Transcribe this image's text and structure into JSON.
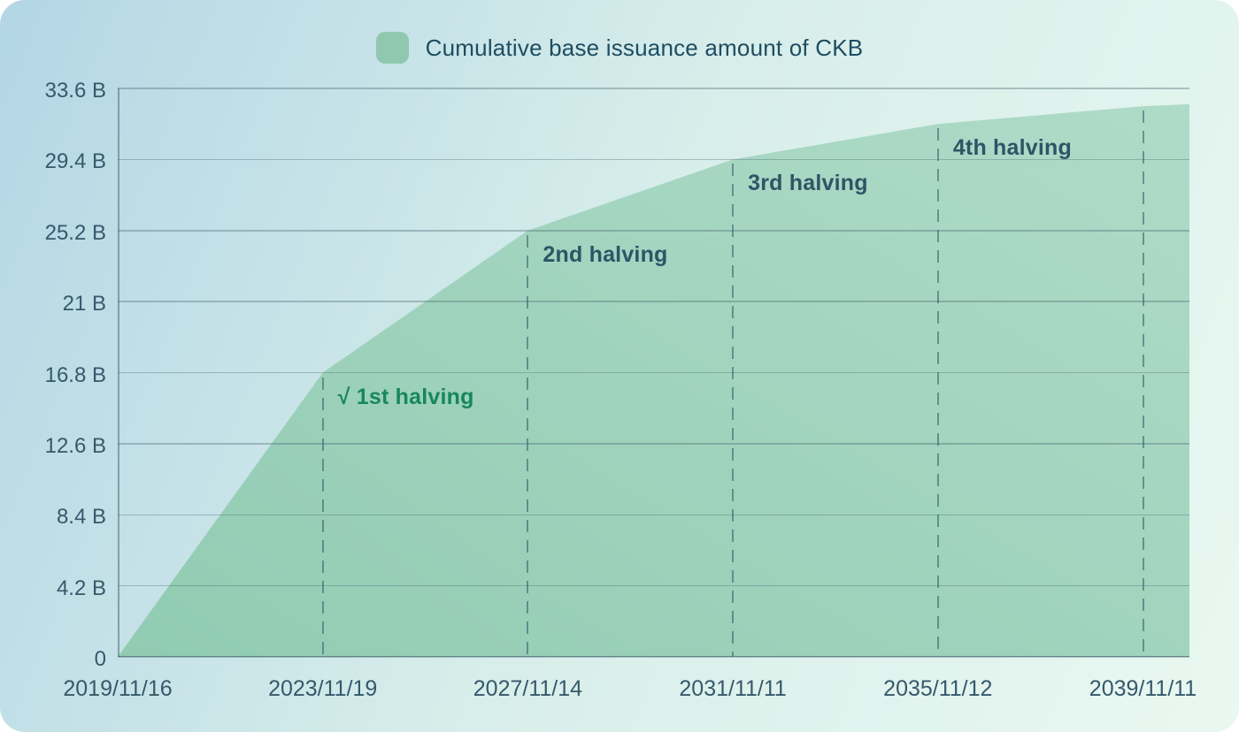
{
  "chart_data": {
    "type": "area",
    "legend": "Cumulative base issuance amount of CKB",
    "unit": "B (billions of CKB)",
    "ylim": [
      0,
      33.6
    ],
    "xlim_epochs": [
      0,
      5.2265
    ],
    "grid": true,
    "legend_position": "top-center",
    "y_ticks": [
      {
        "label": "0",
        "value": 0
      },
      {
        "label": "4.2 B",
        "value": 4.2
      },
      {
        "label": "8.4 B",
        "value": 8.4
      },
      {
        "label": "12.6 B",
        "value": 12.6
      },
      {
        "label": "16.8 B",
        "value": 16.8
      },
      {
        "label": "21 B",
        "value": 21
      },
      {
        "label": "25.2 B",
        "value": 25.2
      },
      {
        "label": "29.4 B",
        "value": 29.4
      },
      {
        "label": "33.6 B",
        "value": 33.6
      }
    ],
    "x_ticks": [
      {
        "label": "2019/11/16",
        "t": 0
      },
      {
        "label": "2023/11/19",
        "t": 1
      },
      {
        "label": "2027/11/14",
        "t": 2
      },
      {
        "label": "2031/11/11",
        "t": 3
      },
      {
        "label": "2035/11/12",
        "t": 4
      },
      {
        "label": "2039/11/11",
        "t": 5
      }
    ],
    "points": [
      {
        "t": 0,
        "v": 0
      },
      {
        "t": 1,
        "v": 16.8
      },
      {
        "t": 2,
        "v": 25.2
      },
      {
        "t": 3,
        "v": 29.4
      },
      {
        "t": 4,
        "v": 31.5
      },
      {
        "t": 5,
        "v": 32.55
      },
      {
        "t": 5.2265,
        "v": 32.67
      }
    ],
    "dashed_line_epochs": [
      1,
      2,
      3,
      4,
      5
    ],
    "annotations": [
      {
        "label": "√ 1st halving",
        "t": 1,
        "color_key": "annotation_green",
        "checked": true
      },
      {
        "label": "2nd halving",
        "t": 2,
        "color_key": "annotation_navy",
        "checked": false
      },
      {
        "label": "3rd halving",
        "t": 3,
        "color_key": "annotation_navy",
        "checked": false
      },
      {
        "label": "4th halving",
        "t": 4,
        "color_key": "annotation_navy",
        "checked": false
      }
    ]
  },
  "colors": {
    "background_start": "#b3d6e5",
    "background_mid": "#d8eeea",
    "background_end": "#e9f8f1",
    "area_fill_dark": "#8dc9ae",
    "area_fill_light": "#abd9c6",
    "legend_swatch": "#8fc8ae",
    "gridline": "rgba(75,108,116,0.38)",
    "axis_line": "rgba(75,108,116,0.55)",
    "dashed_line": "rgba(42,92,98,0.55)",
    "axis_text": "#36596b",
    "legend_text": "#1d4d62",
    "annotation_green": "#17875c",
    "annotation_navy": "#2d5566"
  }
}
